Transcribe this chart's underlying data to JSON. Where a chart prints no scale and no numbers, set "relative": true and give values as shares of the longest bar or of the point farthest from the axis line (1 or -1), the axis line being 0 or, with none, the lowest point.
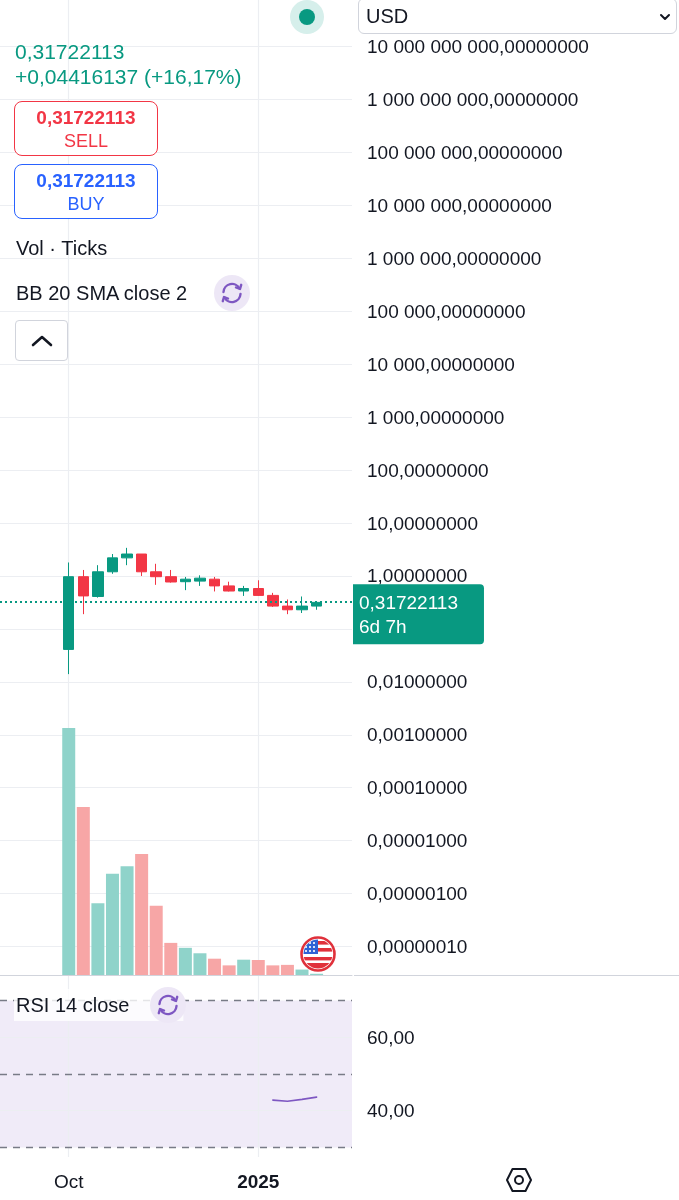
{
  "chart_data": [
    {
      "type": "candlestick",
      "ylabel": "USD",
      "x": [
        "2024-10-07",
        "2024-10-14",
        "2024-10-21",
        "2024-10-28",
        "2024-11-04",
        "2024-11-11",
        "2024-11-18",
        "2024-11-25",
        "2024-12-02",
        "2024-12-09",
        "2024-12-16",
        "2024-12-23",
        "2024-12-30",
        "2025-01-06",
        "2025-01-13",
        "2025-01-20",
        "2025-01-27",
        "2025-02-03"
      ],
      "ohlc": [
        [
          0.041,
          1.8,
          0.014,
          0.97
        ],
        [
          0.97,
          1.3,
          0.19,
          0.42
        ],
        [
          0.41,
          1.6,
          0.39,
          1.2
        ],
        [
          1.2,
          2.6,
          1.1,
          2.2
        ],
        [
          2.2,
          3.4,
          1.6,
          2.6
        ],
        [
          2.6,
          2.6,
          1.0,
          1.2
        ],
        [
          1.2,
          1.7,
          0.68,
          0.97
        ],
        [
          0.97,
          1.3,
          0.75,
          0.77
        ],
        [
          0.78,
          0.96,
          0.54,
          0.87
        ],
        [
          0.8,
          1.03,
          0.65,
          0.91
        ],
        [
          0.87,
          0.96,
          0.51,
          0.65
        ],
        [
          0.65,
          0.78,
          0.51,
          0.52
        ],
        [
          0.52,
          0.65,
          0.42,
          0.58
        ],
        [
          0.58,
          0.83,
          0.42,
          0.43
        ],
        [
          0.43,
          0.48,
          0.26,
          0.27
        ],
        [
          0.27,
          0.36,
          0.19,
          0.23
        ],
        [
          0.23,
          0.41,
          0.2,
          0.27
        ],
        [
          0.27,
          0.32,
          0.23,
          0.31722113
        ]
      ],
      "colors": [
        "#089981",
        "#f23645",
        "#089981",
        "#089981",
        "#089981",
        "#f23645",
        "#f23645",
        "#f23645",
        "#089981",
        "#089981",
        "#f23645",
        "#f23645",
        "#089981",
        "#f23645",
        "#f23645",
        "#f23645",
        "#089981",
        "#089981"
      ],
      "log": true,
      "xlim": [
        "2024-09-04",
        "2025-02-20"
      ],
      "xticks": [
        {
          "value": "2024-10-07",
          "label": null
        },
        {
          "value": "2025-01-06",
          "label": null
        }
      ],
      "ylim": [
        2.9e-08,
        76000000000.0
      ],
      "yticks": [
        {
          "value": 10000000000,
          "label": "10 000 000 000,00000000"
        },
        {
          "value": 1000000000,
          "label": "1 000 000 000,00000000"
        },
        {
          "value": 100000000,
          "label": "100 000 000,00000000"
        },
        {
          "value": 10000000,
          "label": "10 000 000,00000000"
        },
        {
          "value": 1000000,
          "label": "1 000 000,00000000"
        },
        {
          "value": 100000,
          "label": "100 000,00000000"
        },
        {
          "value": 10000,
          "label": "10 000,00000000"
        },
        {
          "value": 1000,
          "label": "1 000,00000000"
        },
        {
          "value": 100,
          "label": "100,00000000"
        },
        {
          "value": 10,
          "label": "10,00000000"
        },
        {
          "value": 1,
          "label": "1,00000000"
        },
        {
          "value": 0.1,
          "label": null
        },
        {
          "value": 0.01,
          "label": "0,01000000"
        },
        {
          "value": 0.001,
          "label": "0,00100000"
        },
        {
          "value": 0.0001,
          "label": "0,00010000"
        },
        {
          "value": 1e-05,
          "label": "0,00001000"
        },
        {
          "value": 1e-06,
          "label": "0,00000100"
        },
        {
          "value": 1e-07,
          "label": "0,00000010"
        }
      ],
      "tick_labels": "y",
      "grid": true,
      "ref_lines": [
        {
          "axis": "y",
          "value": 0.31722113,
          "label": "0,31722113\n6d 7h",
          "color": "#089981",
          "line_style": "dotted"
        }
      ],
      "annotations": [
        "0,31722113",
        "+0,04416137 (+16,17%)",
        "0,31722113",
        "SELL",
        "0,31722113",
        "BUY",
        "BB 20 SMA close 2"
      ]
    },
    {
      "type": "bar",
      "title": "Vol · Ticks",
      "x": [
        "2024-10-07",
        "2024-10-14",
        "2024-10-21",
        "2024-10-28",
        "2024-11-04",
        "2024-11-11",
        "2024-11-18",
        "2024-11-25",
        "2024-12-02",
        "2024-12-09",
        "2024-12-16",
        "2024-12-23",
        "2024-12-30",
        "2025-01-06",
        "2025-01-13",
        "2025-01-20",
        "2025-01-27",
        "2025-02-03"
      ],
      "values": [
        1,
        0.68,
        0.29,
        0.41,
        0.44,
        0.49,
        0.28,
        0.13,
        0.11,
        0.088,
        0.066,
        0.039,
        0.062,
        0.061,
        0.039,
        0.041,
        0.022,
        0.005
      ],
      "colors": [
        "#8fd3ca",
        "#f7a6a6",
        "#8fd3ca",
        "#8fd3ca",
        "#8fd3ca",
        "#f7a6a6",
        "#f7a6a6",
        "#f7a6a6",
        "#8fd3ca",
        "#8fd3ca",
        "#f7a6a6",
        "#f7a6a6",
        "#8fd3ca",
        "#f7a6a6",
        "#f7a6a6",
        "#f7a6a6",
        "#8fd3ca",
        "#8fd3ca"
      ],
      "relative": true,
      "xlim": [
        "2024-09-04",
        "2025-02-20"
      ],
      "tick_labels": false
    },
    {
      "type": "line",
      "title": "RSI 14 close",
      "x": [
        "2025-01-13",
        "2025-01-20",
        "2025-01-27",
        "2025-02-03"
      ],
      "values": [
        42.9,
        42.6,
        43.1,
        43.7
      ],
      "color": "#7e57c2",
      "marker": "none",
      "line_style": "solid",
      "xlim": [
        "2024-09-04",
        "2025-02-20"
      ],
      "xticks": [
        {
          "value": "2024-10-07",
          "label": "Oct"
        },
        {
          "value": "2025-01-06",
          "label": "2025"
        }
      ],
      "ylim": [
        27.4,
        76.7
      ],
      "yticks": [
        {
          "value": 60,
          "label": "60,00"
        },
        {
          "value": 40,
          "label": "40,00"
        }
      ],
      "grid": true,
      "ref_lines": [
        {
          "axis": "y",
          "value": 70,
          "color": "#787b86",
          "line_style": "dashed"
        },
        {
          "axis": "y",
          "value": 50,
          "color": "#787b86",
          "line_style": "dashed"
        },
        {
          "axis": "y",
          "value": 30,
          "color": "#787b86",
          "line_style": "dashed"
        }
      ],
      "bands": [
        {
          "axis": "y",
          "from": 30,
          "to": 70,
          "color": "#f0ebf8"
        }
      ]
    }
  ]
}
